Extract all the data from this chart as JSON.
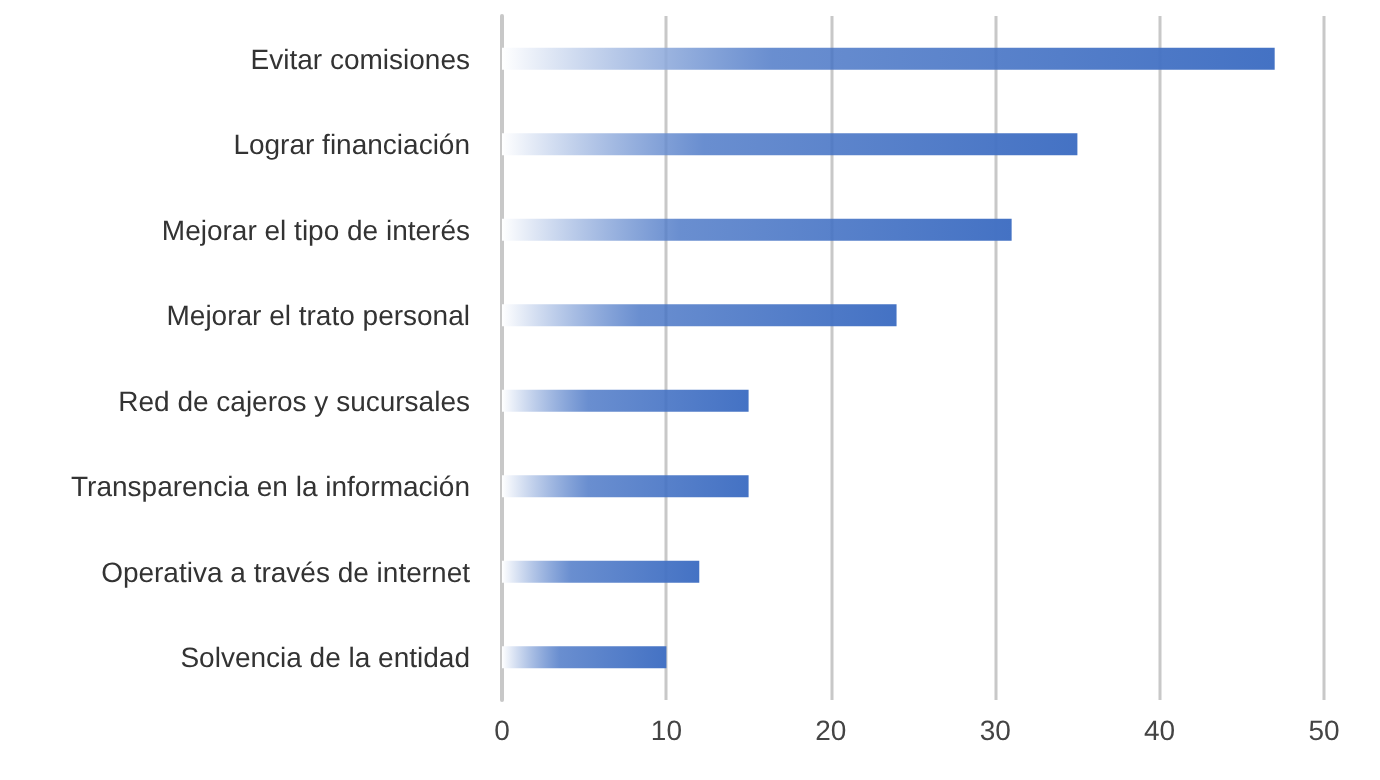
{
  "chart_data": {
    "type": "bar",
    "orientation": "horizontal",
    "categories": [
      "Evitar comisiones",
      "Lograr financiación",
      "Mejorar el tipo de interés",
      "Mejorar el trato personal",
      "Red de cajeros y sucursales",
      "Transparencia en la información",
      "Operativa a través de internet",
      "Solvencia de la entidad"
    ],
    "values": [
      47,
      35,
      31,
      24,
      15,
      15,
      12,
      10
    ],
    "color": "#4472c4",
    "xlim": [
      0,
      50
    ],
    "xticks": [
      0,
      10,
      20,
      30,
      40,
      50
    ],
    "grid": "x"
  }
}
